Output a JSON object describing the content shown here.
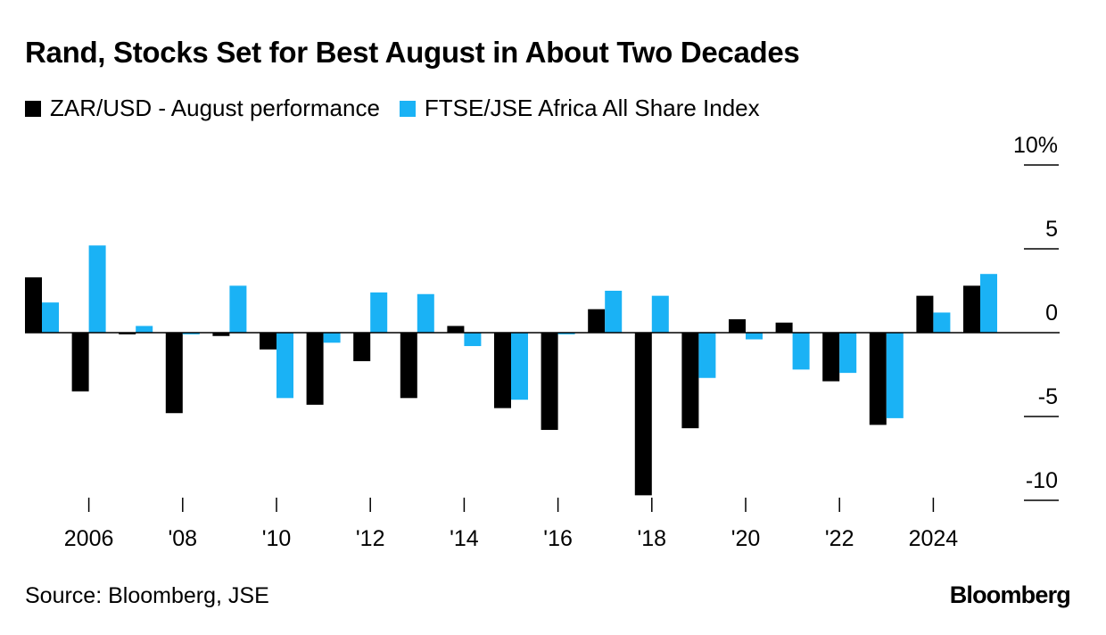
{
  "chart_data": {
    "type": "bar",
    "title": "Rand, Stocks Set for Best August in About Two Decades",
    "x": [
      2005,
      2006,
      2007,
      2008,
      2009,
      2010,
      2011,
      2012,
      2013,
      2014,
      2015,
      2016,
      2017,
      2018,
      2019,
      2020,
      2021,
      2022,
      2023,
      2024,
      2025
    ],
    "series": [
      {
        "name": "ZAR/USD - August performance",
        "color": "#000000",
        "values": [
          3.3,
          -3.5,
          -0.1,
          -4.8,
          -0.2,
          -1.0,
          -4.3,
          -1.7,
          -3.9,
          0.4,
          -4.5,
          -5.8,
          1.4,
          -9.7,
          -5.7,
          0.8,
          0.6,
          -2.9,
          -5.5,
          2.2,
          2.8
        ]
      },
      {
        "name": "FTSE/JSE Africa All Share Index",
        "color": "#1AB2F5",
        "values": [
          1.8,
          5.2,
          0.4,
          -0.1,
          2.8,
          -3.9,
          -0.6,
          2.4,
          2.3,
          -0.8,
          -4.0,
          -0.1,
          2.5,
          2.2,
          -2.7,
          -0.4,
          -2.2,
          -2.4,
          -5.1,
          1.2,
          3.5
        ]
      }
    ],
    "x_ticks": [
      {
        "value": 2006,
        "label": "2006"
      },
      {
        "value": 2008,
        "label": "'08"
      },
      {
        "value": 2010,
        "label": "'10"
      },
      {
        "value": 2012,
        "label": "'12"
      },
      {
        "value": 2014,
        "label": "'14"
      },
      {
        "value": 2016,
        "label": "'16"
      },
      {
        "value": 2018,
        "label": "'18"
      },
      {
        "value": 2020,
        "label": "'20"
      },
      {
        "value": 2022,
        "label": "'22"
      },
      {
        "value": 2024,
        "label": "2024"
      }
    ],
    "y_ticks": [
      {
        "value": 10,
        "label": "10%"
      },
      {
        "value": 5,
        "label": "5"
      },
      {
        "value": 0,
        "label": "0"
      },
      {
        "value": -5,
        "label": "-5"
      },
      {
        "value": -10,
        "label": "-10"
      }
    ],
    "ylim": [
      -10.5,
      10
    ],
    "xlabel": "",
    "ylabel": "",
    "grid": false,
    "legend_position": "top-left",
    "y_axis_side": "right"
  },
  "footer": {
    "source": "Source: Bloomberg, JSE",
    "brand": "Bloomberg"
  }
}
